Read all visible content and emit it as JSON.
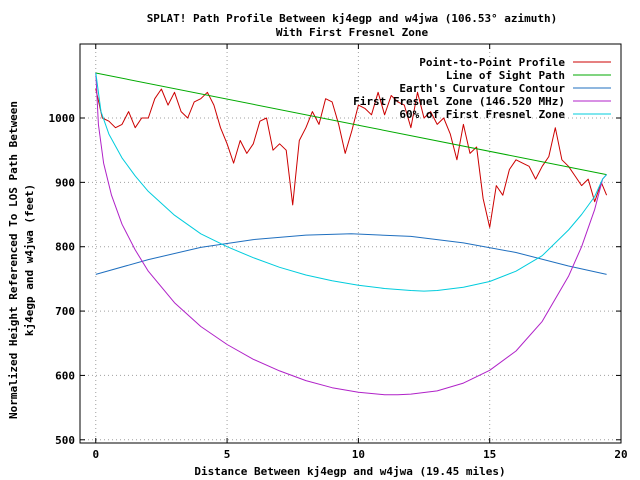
{
  "chart_data": {
    "type": "line",
    "title": "SPLAT! Path Profile Between kj4egp and w4jwa (106.53° azimuth)",
    "subtitle": "With First Fresnel Zone",
    "xlabel": "Distance Between kj4egp and w4jwa (19.45 miles)",
    "ylabel_line1": "Normalized Height Referenced To LOS Path Between",
    "ylabel_line2": "kj4egp and w4jwa (feet)",
    "xlim": [
      -0.6,
      20
    ],
    "ylim": [
      495,
      1115
    ],
    "x_ticks": [
      0,
      5,
      10,
      15,
      20
    ],
    "y_ticks": [
      500,
      600,
      700,
      800,
      900,
      1000
    ],
    "x_tick_labels": [
      "0",
      "5",
      "10",
      "15",
      "20"
    ],
    "y_tick_labels": [
      "500",
      "600",
      "700",
      "800",
      "900",
      "1000"
    ],
    "grid": true,
    "legend_position": "top-right",
    "series": [
      {
        "name": "Point-to-Point Profile",
        "color": "#cc0000",
        "x": [
          0,
          0.25,
          0.5,
          0.75,
          1.0,
          1.25,
          1.5,
          1.75,
          2.0,
          2.25,
          2.5,
          2.75,
          3.0,
          3.25,
          3.5,
          3.75,
          4.0,
          4.25,
          4.5,
          4.75,
          5.0,
          5.25,
          5.5,
          5.75,
          6.0,
          6.25,
          6.5,
          6.75,
          7.0,
          7.25,
          7.5,
          7.75,
          8.0,
          8.25,
          8.5,
          8.75,
          9.0,
          9.25,
          9.5,
          9.75,
          10.0,
          10.25,
          10.5,
          10.75,
          11.0,
          11.25,
          11.5,
          11.75,
          12.0,
          12.25,
          12.5,
          12.75,
          13.0,
          13.25,
          13.5,
          13.75,
          14.0,
          14.25,
          14.5,
          14.75,
          15.0,
          15.25,
          15.5,
          15.75,
          16.0,
          16.25,
          16.5,
          16.75,
          17.0,
          17.25,
          17.5,
          17.75,
          18.0,
          18.25,
          18.5,
          18.75,
          19.0,
          19.25,
          19.45
        ],
        "y": [
          1045,
          1000,
          995,
          985,
          990,
          1010,
          985,
          1000,
          1000,
          1030,
          1045,
          1020,
          1040,
          1010,
          1000,
          1025,
          1030,
          1040,
          1020,
          985,
          960,
          930,
          965,
          945,
          960,
          995,
          1000,
          950,
          960,
          950,
          865,
          965,
          985,
          1010,
          990,
          1030,
          1025,
          990,
          945,
          980,
          1020,
          1015,
          1005,
          1040,
          1005,
          1035,
          1025,
          1020,
          985,
          1040,
          1000,
          1010,
          990,
          1000,
          975,
          935,
          990,
          945,
          955,
          875,
          830,
          895,
          880,
          920,
          935,
          930,
          925,
          905,
          925,
          940,
          985,
          935,
          925,
          910,
          895,
          905,
          870,
          900,
          880
        ]
      },
      {
        "name": "Line of Sight Path",
        "color": "#00aa00",
        "x": [
          0,
          19.45
        ],
        "y": [
          1070,
          912
        ]
      },
      {
        "name": "Earth's Curvature Contour",
        "color": "#1f6fbf",
        "x": [
          0,
          2,
          4,
          6,
          8,
          9.725,
          12,
          14,
          16,
          18,
          19.45
        ],
        "y": [
          757,
          780,
          799,
          811,
          818,
          820,
          816,
          806,
          791,
          770,
          757
        ]
      },
      {
        "name": "First Fresnel Zone (146.520 MHz)",
        "color": "#b022c8",
        "x": [
          0,
          0.1,
          0.3,
          0.6,
          1,
          1.5,
          2,
          3,
          4,
          5,
          6,
          7,
          8,
          9,
          10,
          11,
          11.5,
          12,
          13,
          14,
          15,
          16,
          17,
          18,
          18.5,
          19,
          19.3,
          19.45
        ],
        "y": [
          1070,
          990,
          930,
          880,
          835,
          795,
          762,
          713,
          676,
          648,
          625,
          607,
          592,
          581,
          574,
          570,
          570,
          571,
          576,
          588,
          608,
          638,
          684,
          754,
          800,
          858,
          905,
          912
        ]
      },
      {
        "name": "60% of First Fresnel Zone",
        "color": "#00ccdd",
        "x": [
          0,
          0.2,
          0.5,
          1,
          1.5,
          2,
          3,
          4,
          5,
          6,
          7,
          8,
          9,
          10,
          11,
          12,
          12.5,
          13,
          14,
          15,
          16,
          17,
          18,
          18.5,
          19,
          19.3,
          19.45
        ],
        "y": [
          1070,
          1010,
          975,
          938,
          910,
          886,
          849,
          820,
          800,
          783,
          768,
          756,
          747,
          740,
          735,
          732,
          731,
          732,
          737,
          746,
          762,
          786,
          826,
          850,
          878,
          905,
          912
        ]
      }
    ]
  }
}
